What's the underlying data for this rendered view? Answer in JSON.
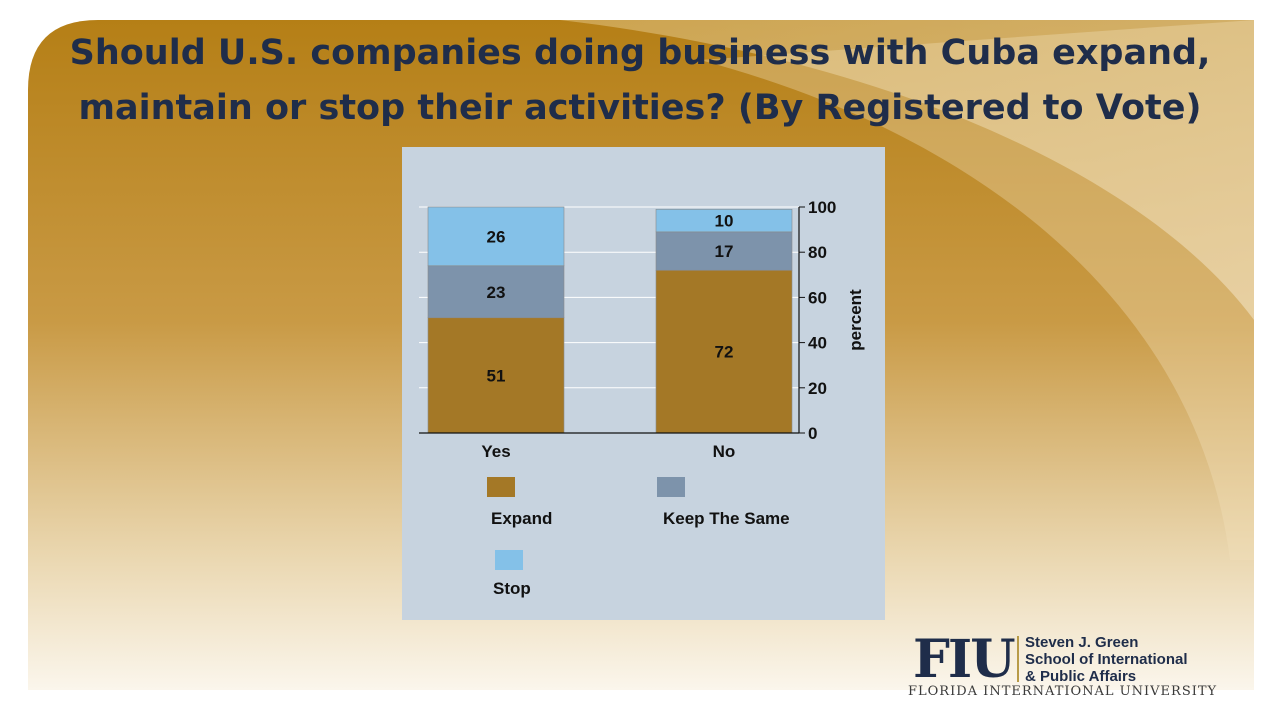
{
  "title": {
    "line1": "Should U.S. companies doing business with Cuba expand,",
    "line2": "maintain or stop their activities? (By Registered to Vote)"
  },
  "colors": {
    "gold": "#b8862b",
    "title": "#1f2d4a",
    "panel": "#c7d3df",
    "expand": "#a47826",
    "keep": "#7d93ab",
    "stop": "#84c1e8"
  },
  "chart_data": {
    "type": "bar",
    "stacked": true,
    "categories": [
      "Yes",
      "No"
    ],
    "series": [
      {
        "name": "Expand",
        "values": [
          51,
          72
        ],
        "color": "#a47826"
      },
      {
        "name": "Keep The Same",
        "values": [
          23,
          17
        ],
        "color": "#7d93ab"
      },
      {
        "name": "Stop",
        "values": [
          26,
          10
        ],
        "color": "#84c1e8"
      }
    ],
    "ylabel": "percent",
    "ylim": [
      0,
      100
    ],
    "yticks": [
      0,
      20,
      40,
      60,
      80,
      100
    ],
    "y_axis_side": "right",
    "grid": true,
    "legend_position": "bottom"
  },
  "logo": {
    "letters": "FIU",
    "school": "Steven J. Green\nSchool of International\n& Public Affairs",
    "university": "FLORIDA INTERNATIONAL UNIVERSITY"
  }
}
